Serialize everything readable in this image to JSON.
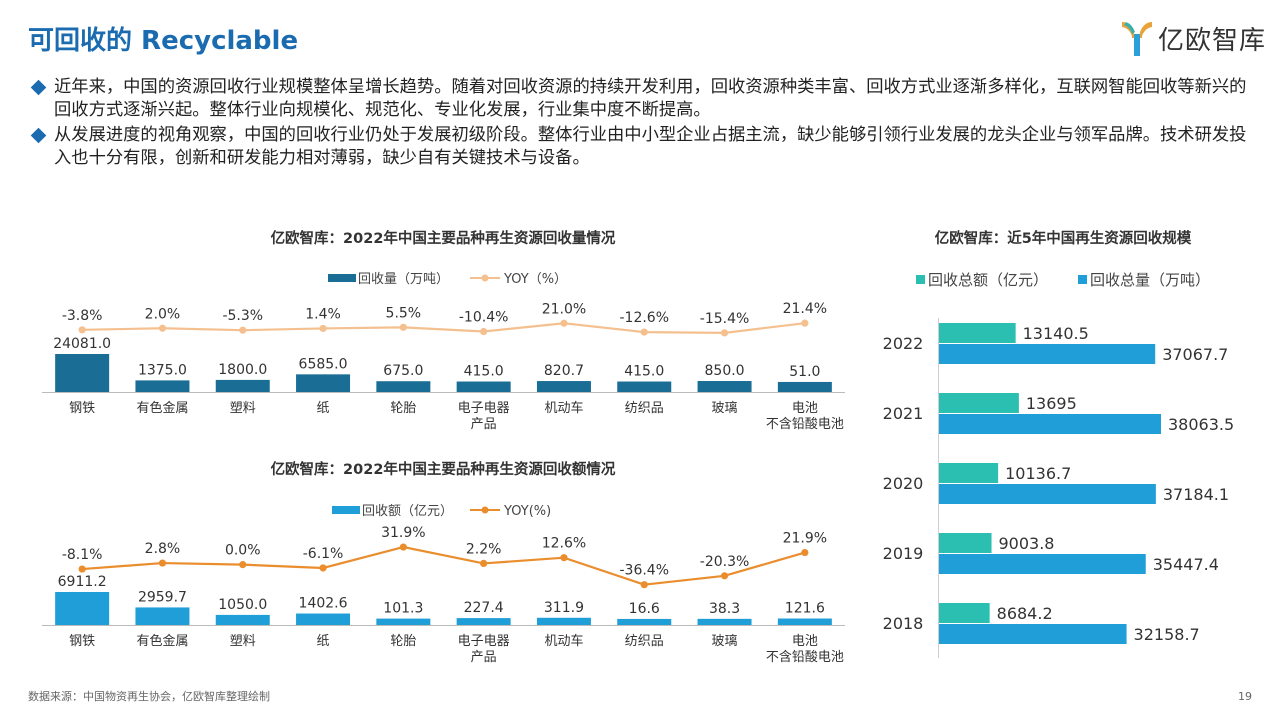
{
  "page": {
    "title": "可回收的 Recyclable",
    "logo_text": "亿欧智库",
    "bullets": [
      "近年来，中国的资源回收行业规模整体呈增长趋势。随着对回收资源的持续开发利用，回收资源种类丰富、回收方式业逐渐多样化，互联网智能回收等新兴的回收方式逐渐兴起。整体行业向规模化、规范化、专业化发展，行业集中度不断提高。",
      "从发展进度的视角观察，中国的回收行业仍处于发展初级阶段。整体行业由中小型企业占据主流，缺少能够引领行业发展的龙头企业与领军品牌。技术研发投入也十分有限，创新和研发能力相对薄弱，缺少自有关键技术与设备。"
    ],
    "source": "数据来源：中国物资再生协会，亿欧智库整理绘制",
    "page_number": "19"
  },
  "colors": {
    "title_blue": "#1a6bb0",
    "volume_bar": "#1a6e96",
    "volume_yoy": "#f5c08f",
    "amount_bar": "#1f9ed8",
    "amount_yoy": "#ea8d2d",
    "teal": "#2abfb0",
    "blue": "#1f9ed8"
  },
  "chart_data": [
    {
      "type": "bar",
      "title": "亿欧智库：2022年中国主要品种再生资源回收量情况",
      "categories": [
        [
          "钢铁"
        ],
        [
          "有色金属"
        ],
        [
          "塑料"
        ],
        [
          "纸"
        ],
        [
          "轮胎"
        ],
        [
          "电子电器",
          "产品"
        ],
        [
          "机动车"
        ],
        [
          "纺织品"
        ],
        [
          "玻璃"
        ],
        [
          "电池",
          "不含铅酸电池"
        ]
      ],
      "series": [
        {
          "name": "回收量（万吨）",
          "type": "bar",
          "values": [
            24081.0,
            1375.0,
            1800.0,
            6585.0,
            675.0,
            415.0,
            820.7,
            415.0,
            850.0,
            51.0
          ],
          "labels": [
            "24081.0",
            "1375.0",
            "1800.0",
            "6585.0",
            "675.0",
            "415.0",
            "820.7",
            "415.0",
            "850.0",
            "51.0"
          ]
        },
        {
          "name": "YOY（%）",
          "type": "line",
          "values": [
            -3.8,
            2.0,
            -5.3,
            1.4,
            5.5,
            -10.4,
            21.0,
            -12.6,
            -15.4,
            21.4
          ],
          "labels": [
            "-3.8%",
            "2.0%",
            "-5.3%",
            "1.4%",
            "5.5%",
            "-10.4%",
            "21.0%",
            "-12.6%",
            "-15.4%",
            "21.4%"
          ]
        }
      ],
      "legend_position": "top"
    },
    {
      "type": "bar",
      "title": "亿欧智库：2022年中国主要品种再生资源回收额情况",
      "categories": [
        [
          "钢铁"
        ],
        [
          "有色金属"
        ],
        [
          "塑料"
        ],
        [
          "纸"
        ],
        [
          "轮胎"
        ],
        [
          "电子电器",
          "产品"
        ],
        [
          "机动车"
        ],
        [
          "纺织品"
        ],
        [
          "玻璃"
        ],
        [
          "电池",
          "不含铅酸电池"
        ]
      ],
      "series": [
        {
          "name": "回收额（亿元）",
          "type": "bar",
          "values": [
            6911.2,
            2959.7,
            1050.0,
            1402.6,
            101.3,
            227.4,
            311.9,
            16.6,
            38.3,
            121.6
          ],
          "labels": [
            "6911.2",
            "2959.7",
            "1050.0",
            "1402.6",
            "101.3",
            "227.4",
            "311.9",
            "16.6",
            "38.3",
            "121.6"
          ]
        },
        {
          "name": "YOY(%)",
          "type": "line",
          "values": [
            -8.1,
            2.8,
            0.0,
            -6.1,
            31.9,
            2.2,
            12.6,
            -36.4,
            -20.3,
            21.9
          ],
          "labels": [
            "-8.1%",
            "2.8%",
            "0.0%",
            "-6.1%",
            "31.9%",
            "2.2%",
            "12.6%",
            "-36.4%",
            "-20.3%",
            "21.9%"
          ]
        }
      ],
      "legend_position": "top"
    },
    {
      "type": "bar",
      "orientation": "horizontal",
      "title": "亿欧智库：近5年中国再生资源回收规模",
      "categories": [
        "2022",
        "2021",
        "2020",
        "2019",
        "2018"
      ],
      "series": [
        {
          "name": "回收总额（亿元）",
          "values": [
            13140.5,
            13695,
            10136.7,
            9003.8,
            8684.2
          ],
          "labels": [
            "13140.5",
            "13695",
            "10136.7",
            "9003.8",
            "8684.2"
          ]
        },
        {
          "name": "回收总量（万吨）",
          "values": [
            37067.7,
            38063.5,
            37184.1,
            35447.4,
            32158.7
          ],
          "labels": [
            "37067.7",
            "38063.5",
            "37184.1",
            "35447.4",
            "32158.7"
          ]
        }
      ],
      "legend_position": "top"
    }
  ]
}
